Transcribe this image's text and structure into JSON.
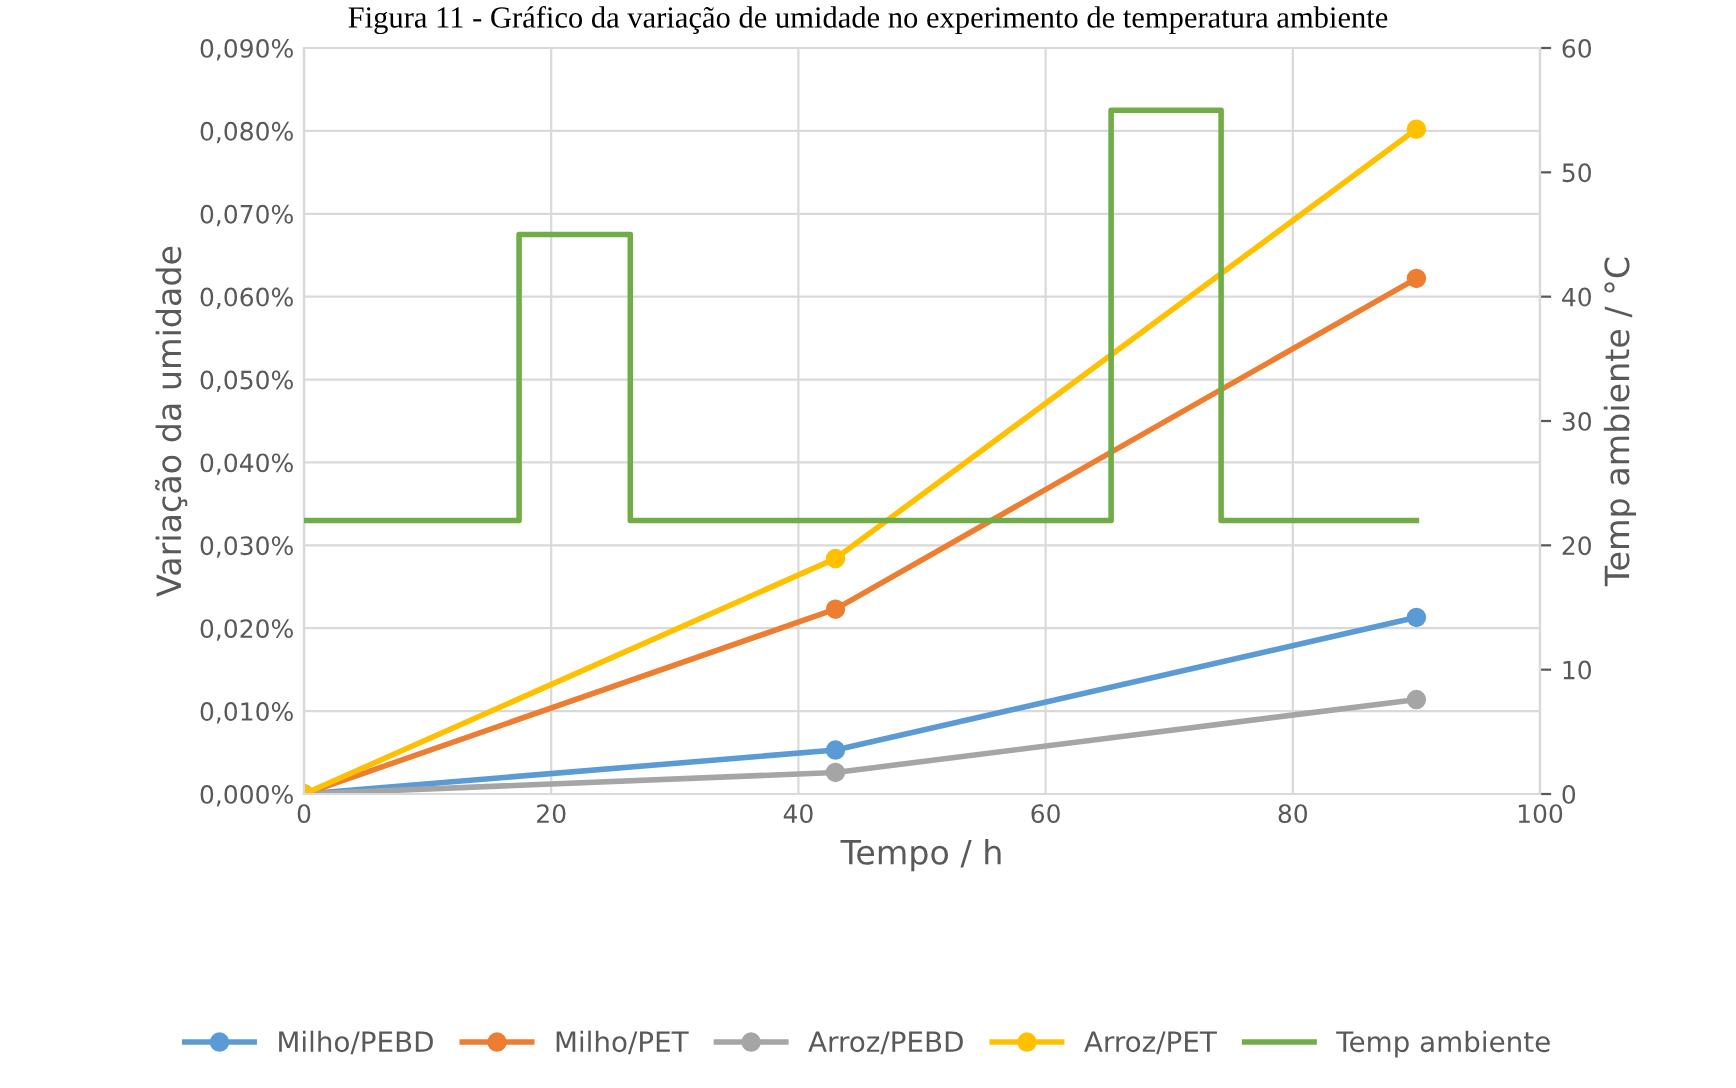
{
  "chart_data": {
    "type": "line",
    "title": "Figura 11 - Gráfico da variação de umidade no experimento de temperatura ambiente",
    "xlabel": "Tempo / h",
    "ylabel": "Variação da umidade",
    "y2label": "Temp ambiente / °C",
    "x": [
      0,
      43,
      90
    ],
    "series": [
      {
        "name": "Milho/PEBD",
        "color": "#5b9bd5",
        "values": [
          0,
          0.0053,
          0.0213
        ],
        "marker": "circle"
      },
      {
        "name": "Milho/PET",
        "color": "#ed7d31",
        "values": [
          0,
          0.0223,
          0.0622
        ],
        "marker": "circle"
      },
      {
        "name": "Arroz/PEBD",
        "color": "#a5a5a5",
        "values": [
          0,
          0.0026,
          0.0114
        ],
        "marker": "circle"
      },
      {
        "name": "Arroz/PET",
        "color": "#ffc000",
        "values": [
          0,
          0.0284,
          0.0802
        ],
        "marker": "circle"
      },
      {
        "name": "Temp ambiente",
        "color": "#70ad47",
        "axis": "y2",
        "marker": "none",
        "x": [
          0,
          17.4,
          17.4,
          26.4,
          26.4,
          65.3,
          65.3,
          74.2,
          74.2,
          90
        ],
        "values": [
          22,
          22,
          45,
          45,
          22,
          22,
          55,
          55,
          22,
          22
        ]
      }
    ],
    "xlim": [
      0,
      100
    ],
    "xticks": [
      0,
      20,
      40,
      60,
      80,
      100
    ],
    "ylim": [
      0,
      0.09
    ],
    "yticks": [
      {
        "value": 0,
        "label": "0,000%"
      },
      {
        "value": 0.01,
        "label": "0,010%"
      },
      {
        "value": 0.02,
        "label": "0,020%"
      },
      {
        "value": 0.03,
        "label": "0,030%"
      },
      {
        "value": 0.04,
        "label": "0,040%"
      },
      {
        "value": 0.05,
        "label": "0,050%"
      },
      {
        "value": 0.06,
        "label": "0,060%"
      },
      {
        "value": 0.07,
        "label": "0,070%"
      },
      {
        "value": 0.08,
        "label": "0,080%"
      },
      {
        "value": 0.09,
        "label": "0,090%"
      }
    ],
    "y2lim": [
      0,
      60
    ],
    "y2ticks": [
      0,
      10,
      20,
      30,
      40,
      50,
      60
    ],
    "grid": true,
    "legend": "bottom",
    "line_style": "solid"
  }
}
